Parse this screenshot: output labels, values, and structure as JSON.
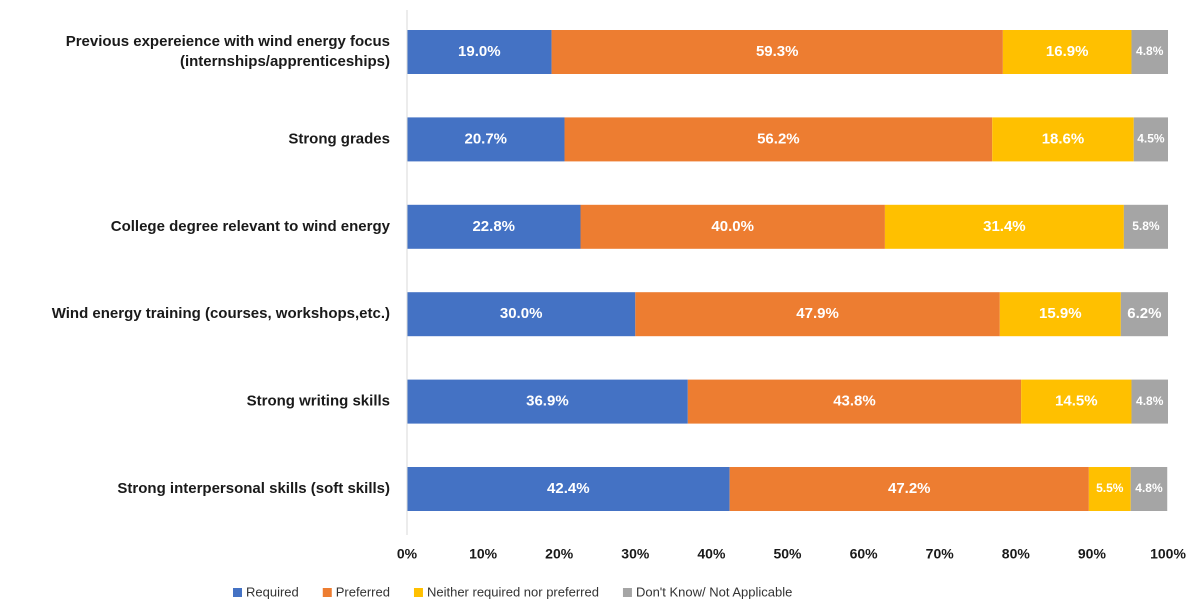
{
  "chart_data": {
    "type": "stacked_barh",
    "categories": [
      "Previous expereience with wind energy focus\n(internships/apprenticeships)",
      "Strong grades",
      "College degree relevant to wind energy",
      "Wind energy training (courses, workshops,etc.)",
      "Strong writing skills",
      "Strong interpersonal skills (soft skills)"
    ],
    "series": [
      {
        "name": "Required",
        "color": "#4472c4",
        "values": [
          19.0,
          20.7,
          22.8,
          30.0,
          36.9,
          42.4
        ],
        "value_labels": [
          "19.0%",
          "20.7%",
          "22.8%",
          "30.0%",
          "36.9%",
          "42.4%"
        ]
      },
      {
        "name": "Preferred",
        "color": "#ed7d31",
        "values": [
          59.3,
          56.2,
          40.0,
          47.9,
          43.8,
          47.2
        ],
        "value_labels": [
          "59.3%",
          "56.2%",
          "40.0%",
          "47.9%",
          "43.8%",
          "47.2%"
        ]
      },
      {
        "name": "Neither required nor preferred",
        "color": "#ffc000",
        "values": [
          16.9,
          18.6,
          31.4,
          15.9,
          14.5,
          5.5
        ],
        "value_labels": [
          "16.9%",
          "18.6%",
          "31.4%",
          "15.9%",
          "14.5%",
          "5.5%"
        ]
      },
      {
        "name": "Don't Know/ Not Applicable",
        "color": "#a5a5a5",
        "values": [
          4.8,
          4.5,
          5.8,
          6.2,
          4.8,
          4.8
        ],
        "value_labels": [
          "4.8%",
          "4.5%",
          "5.8%",
          "6.2%",
          "4.8%",
          "4.8%"
        ]
      }
    ],
    "xlim": [
      0,
      100
    ],
    "xticks": [
      {
        "value": 0,
        "label": "0%"
      },
      {
        "value": 10,
        "label": "10%"
      },
      {
        "value": 20,
        "label": "20%"
      },
      {
        "value": 30,
        "label": "30%"
      },
      {
        "value": 40,
        "label": "40%"
      },
      {
        "value": 50,
        "label": "50%"
      },
      {
        "value": 60,
        "label": "60%"
      },
      {
        "value": 70,
        "label": "70%"
      },
      {
        "value": 80,
        "label": "80%"
      },
      {
        "value": 90,
        "label": "90%"
      },
      {
        "value": 100,
        "label": "100%"
      }
    ],
    "legend": "bottom"
  }
}
